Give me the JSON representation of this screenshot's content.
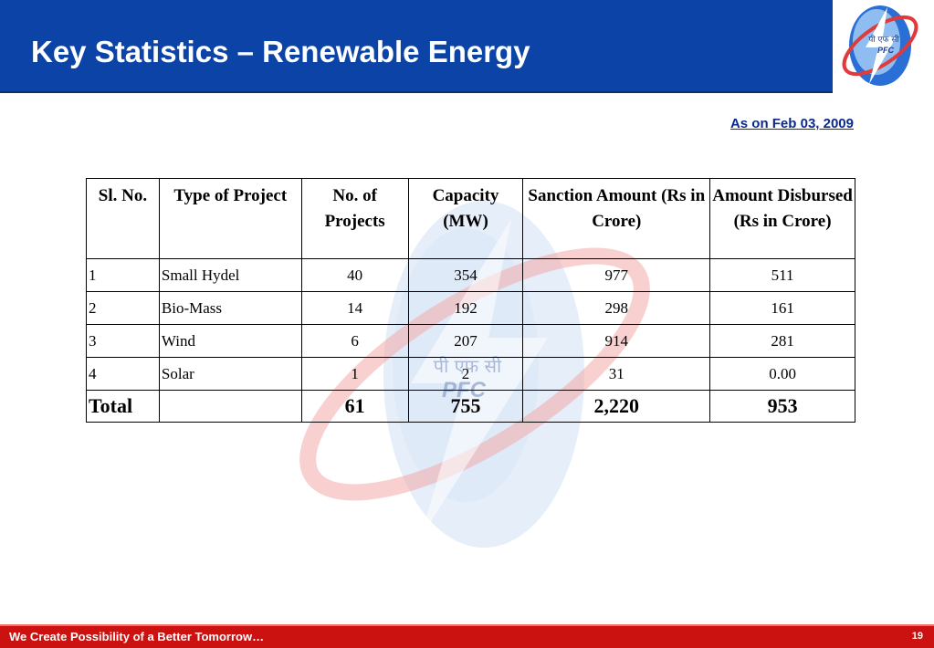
{
  "header": {
    "title": "Key Statistics – Renewable Energy"
  },
  "logo": {
    "icon": "pfc-lightning-globe-logo",
    "hindi_text": "पी एफ सी",
    "text": "PFC"
  },
  "as_on": "As on Feb 03, 2009",
  "table": {
    "headers": [
      "Sl. No.",
      "Type of Project",
      "No. of Projects",
      "Capacity (MW)",
      "Sanction Amount (Rs in Crore)",
      "Amount Disbursed (Rs in Crore)"
    ],
    "rows": [
      [
        "1",
        "Small Hydel",
        "40",
        "354",
        "977",
        "511"
      ],
      [
        "2",
        "Bio-Mass",
        "14",
        "192",
        "298",
        "161"
      ],
      [
        "3",
        "Wind",
        "6",
        "207",
        "914",
        "281"
      ],
      [
        "4",
        "Solar",
        "1",
        "2",
        "31",
        "0.00"
      ]
    ],
    "total": {
      "label": "Total",
      "projects": "61",
      "capacity": "755",
      "sanction": "2,220",
      "disbursed": "953"
    }
  },
  "watermark": {
    "hindi_text": "पी एफ सी",
    "text": "PFC"
  },
  "footer": {
    "slogan": "We Create Possibility of a Better Tomorrow…",
    "page_number": "19"
  },
  "colors": {
    "header_blue": "#0b44a6",
    "footer_red": "#cc1111",
    "date_text": "#0a2a8c"
  }
}
